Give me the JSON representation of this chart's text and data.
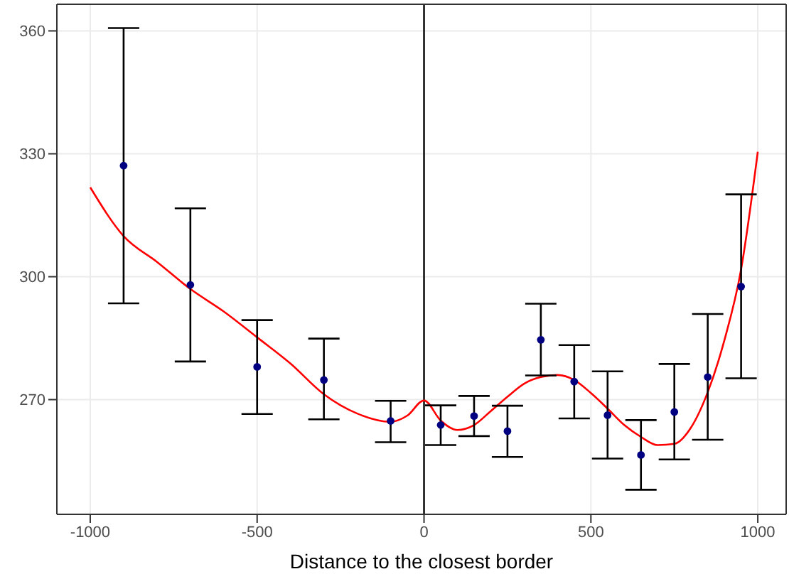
{
  "chart_data": {
    "type": "scatter",
    "xlabel": "Distance to the closest border",
    "xlim": [
      -1100,
      1085
    ],
    "ylim": [
      242,
      366.5
    ],
    "xticks": [
      -1000,
      -500,
      0,
      500,
      1000
    ],
    "yticks": [
      270,
      300,
      330,
      360
    ],
    "grid": true,
    "ref_lines": [
      {
        "axis": "x",
        "value": 0,
        "color": "#000000"
      }
    ],
    "series": [
      {
        "type": "scatter",
        "color": "#000080",
        "marker": "circle",
        "x": [
          -900,
          -700,
          -500,
          -300,
          -100,
          50,
          150,
          250,
          350,
          450,
          550,
          650,
          750,
          850,
          950
        ],
        "values": [
          327.1,
          298,
          278,
          274.8,
          264.8,
          263.8,
          266,
          262.3,
          284.6,
          274.4,
          266.2,
          256.5,
          267,
          275.5,
          297.6
        ],
        "errors": [
          [
            293.5,
            360.7
          ],
          [
            279.3,
            316.7
          ],
          [
            266.5,
            289.4
          ],
          [
            265.2,
            284.9
          ],
          [
            259.6,
            269.7
          ],
          [
            258.9,
            268.6
          ],
          [
            261.1,
            270.9
          ],
          [
            256,
            268.5
          ],
          [
            275.9,
            293.4
          ],
          [
            265.4,
            283.3
          ],
          [
            255.6,
            276.9
          ],
          [
            248,
            265
          ],
          [
            255.4,
            278.7
          ],
          [
            260.2,
            290.9
          ],
          [
            275.2,
            320.1
          ]
        ]
      },
      {
        "type": "line",
        "color": "#ff0000",
        "marker": "none",
        "line_style": "solid",
        "x": [
          -1000,
          -900,
          -800,
          -700,
          -600,
          -500,
          -400,
          -300,
          -200,
          -100,
          -50,
          0,
          50,
          100,
          150,
          200,
          250,
          300,
          350,
          400,
          450,
          500,
          550,
          600,
          650,
          700,
          750,
          800,
          850,
          900,
          950,
          1000
        ],
        "values": [
          321.8,
          309.9,
          303.6,
          297,
          291.5,
          285.2,
          278.8,
          271.3,
          266.6,
          264.6,
          266.1,
          269.8,
          264.9,
          262.6,
          263.8,
          267.2,
          270.7,
          273.9,
          275.5,
          276,
          274.8,
          271.6,
          267.8,
          263.8,
          260.9,
          258.9,
          259.2,
          263.2,
          271.8,
          284.5,
          301.8,
          330.5
        ]
      }
    ]
  }
}
